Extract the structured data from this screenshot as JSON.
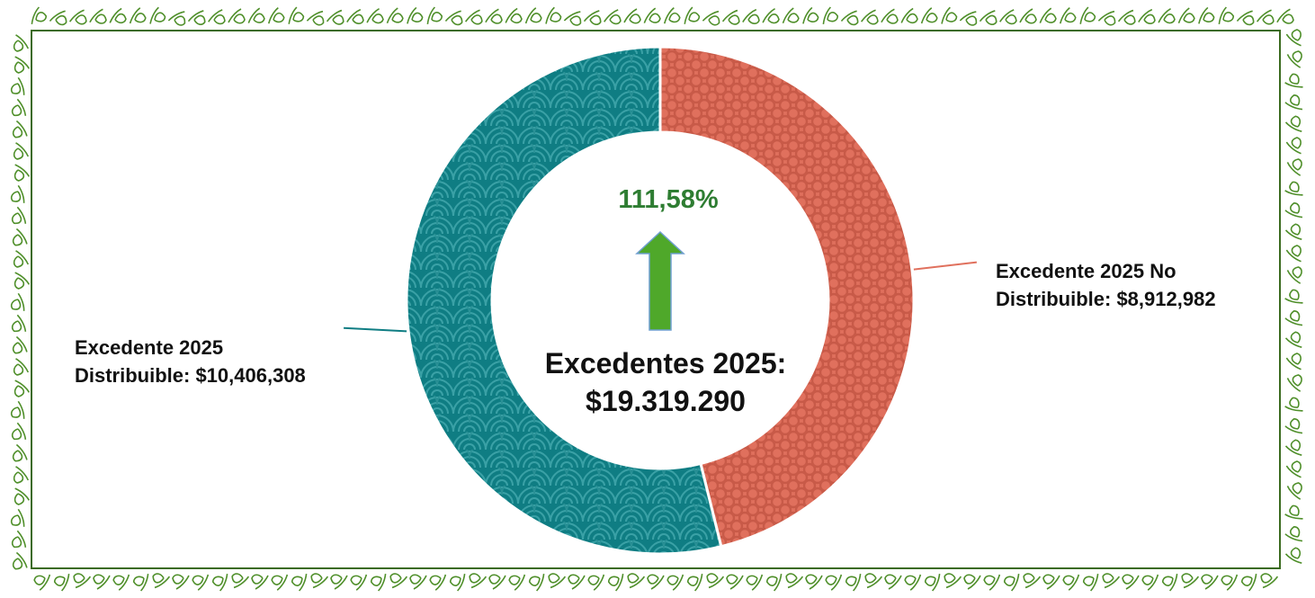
{
  "colors": {
    "distribuible": "#0f7d83",
    "no_distribuible": "#e0705d",
    "arrow": "#4fa82a",
    "percent_text": "#2e7d32",
    "frame": "#3b6b1f",
    "vines": "#4f8f2a"
  },
  "icons": {
    "arrow": "up-arrow-icon"
  },
  "chart_data": {
    "type": "pie",
    "subtype": "donut",
    "center": {
      "percent": "111,58%",
      "title_line1": "Excedentes 2025:",
      "title_line2": "$19.319.290"
    },
    "slices": [
      {
        "name": "Excedente 2025 No Distribuible",
        "value": 8912982,
        "label_line1": "Excedente 2025 No",
        "label_line2": "Distribuible: $8,912,982",
        "color": "#e0705d",
        "pattern": "circles"
      },
      {
        "name": "Excedente 2025 Distribuible",
        "value": 10406308,
        "label_line1": "Excedente 2025",
        "label_line2": "Distribuible: $10,406,308",
        "color": "#0f7d83",
        "pattern": "waves"
      }
    ],
    "start_angle": "top",
    "direction": "clockwise"
  }
}
